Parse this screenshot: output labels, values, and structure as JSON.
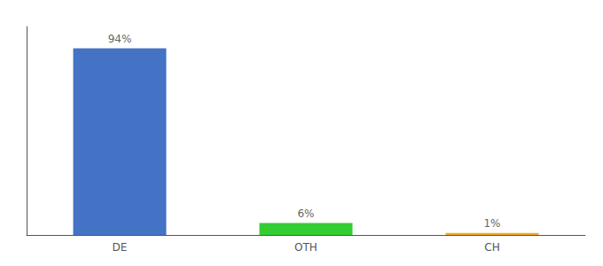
{
  "chart_data": {
    "type": "bar",
    "categories": [
      "DE",
      "OTH",
      "CH"
    ],
    "values": [
      94,
      6,
      1
    ],
    "value_labels": [
      "94%",
      "6%",
      "1%"
    ],
    "colors": [
      "#4472c4",
      "#33cc33",
      "#f5a623"
    ],
    "ylim": [
      0,
      105
    ],
    "data_labels": true,
    "tick_labels": "x",
    "grid": false
  }
}
